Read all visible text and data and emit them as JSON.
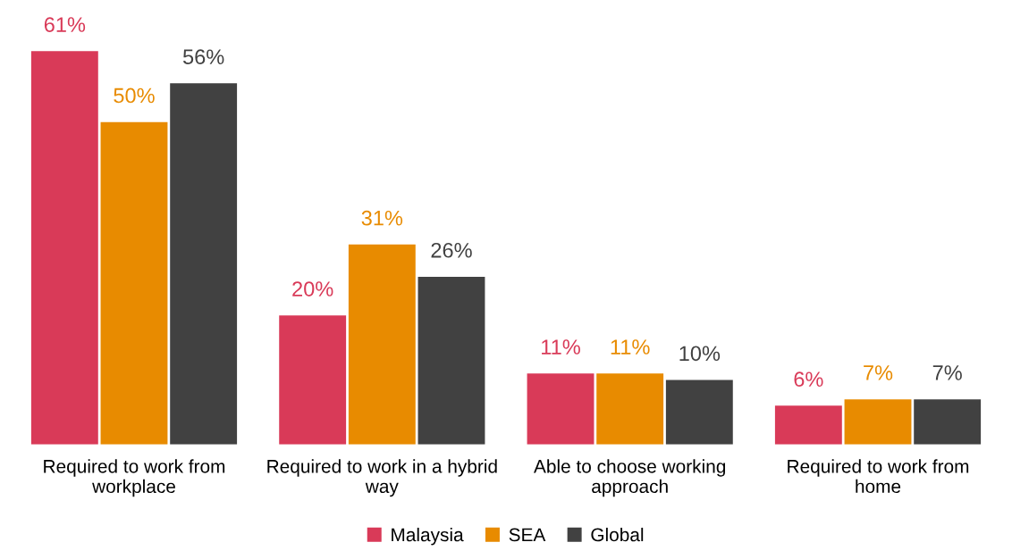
{
  "chart_data": {
    "type": "bar",
    "categories": [
      "Required to work from\nworkplace",
      "Required to work in a hybrid\nway",
      "Able to choose working\napproach",
      "Required to work from\nhome"
    ],
    "series": [
      {
        "name": "Malaysia",
        "color": "#d93a58",
        "values": [
          61,
          20,
          11,
          6
        ],
        "value_labels": [
          "61%",
          "20%",
          "11%",
          "6%"
        ]
      },
      {
        "name": "SEA",
        "color": "#e88b00",
        "values": [
          50,
          31,
          11,
          7
        ],
        "value_labels": [
          "50%",
          "31%",
          "11%",
          "7%"
        ]
      },
      {
        "name": "Global",
        "color": "#414141",
        "values": [
          56,
          26,
          10,
          7
        ],
        "value_labels": [
          "56%",
          "26%",
          "10%",
          "7%"
        ]
      }
    ],
    "legend": "bottom"
  }
}
